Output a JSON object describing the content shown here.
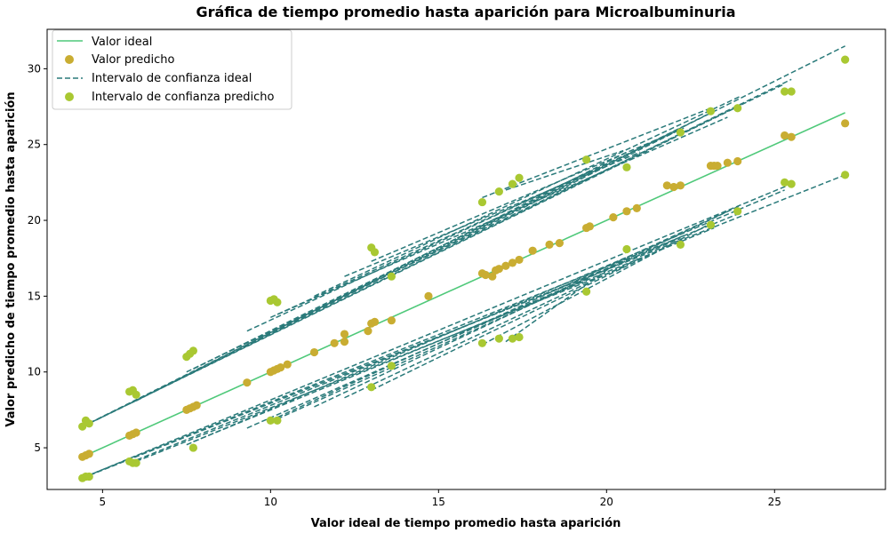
{
  "chart_data": {
    "type": "scatter",
    "title": "Gráfica de tiempo promedio hasta aparición para Microalbuminuria",
    "xlabel": "Valor ideal de tiempo promedio hasta aparición",
    "ylabel": "Valor predicho de tiempo promedio hasta aparición",
    "xlim": [
      3.35,
      28.3
    ],
    "ylim": [
      2.25,
      32.6
    ],
    "xticks": [
      5,
      10,
      15,
      20,
      25
    ],
    "yticks": [
      5,
      10,
      15,
      20,
      25,
      30
    ],
    "grid": false,
    "legend_position": "top-left",
    "legend": [
      "Valor ideal",
      "Valor predicho",
      "Intervalo de confianza ideal",
      "Intervalo de confianza predicho"
    ],
    "colors": {
      "ideal_line": "#4fc97a",
      "predicted": "#c9ad32",
      "ci_ideal": "#2a7a7a",
      "ci_predicted": "#a9c832"
    },
    "ideal_line": {
      "x": [
        4.4,
        27.1
      ],
      "y": [
        4.4,
        27.1
      ]
    },
    "predicted_points": {
      "x": [
        4.4,
        4.5,
        4.6,
        5.8,
        5.9,
        6.0,
        7.5,
        7.6,
        7.7,
        7.8,
        9.3,
        10.0,
        10.1,
        10.2,
        10.3,
        10.5,
        11.3,
        11.9,
        12.2,
        12.2,
        12.9,
        13.0,
        13.1,
        13.6,
        14.7,
        16.3,
        16.4,
        16.6,
        16.7,
        16.8,
        17.0,
        17.2,
        17.4,
        17.8,
        18.3,
        18.6,
        19.4,
        19.5,
        20.2,
        20.6,
        20.9,
        21.8,
        22.0,
        22.2,
        23.1,
        23.2,
        23.3,
        23.6,
        23.9,
        25.3,
        25.5,
        27.1
      ],
      "y": [
        4.4,
        4.5,
        4.6,
        5.8,
        5.9,
        6.0,
        7.5,
        7.6,
        7.7,
        7.8,
        9.3,
        10.0,
        10.1,
        10.2,
        10.3,
        10.5,
        11.3,
        11.9,
        12.5,
        12.0,
        12.7,
        13.2,
        13.3,
        13.4,
        15.0,
        16.5,
        16.4,
        16.3,
        16.7,
        16.8,
        17.0,
        17.2,
        17.4,
        18.0,
        18.4,
        18.5,
        19.5,
        19.6,
        20.2,
        20.6,
        20.8,
        22.3,
        22.2,
        22.3,
        23.6,
        23.6,
        23.6,
        23.8,
        23.9,
        25.6,
        25.5,
        26.4
      ]
    },
    "ci_ideal": {
      "upper": [
        [
          4.4,
          6.4,
          27.1,
          31.5
        ],
        [
          4.5,
          6.5,
          25.5,
          29.3
        ],
        [
          4.6,
          6.6,
          24.0,
          27.6
        ],
        [
          5.8,
          7.9,
          22.2,
          26.0
        ],
        [
          6.0,
          8.1,
          20.6,
          24.5
        ],
        [
          7.5,
          10.0,
          25.3,
          29.0
        ],
        [
          7.7,
          10.2,
          23.2,
          27.2
        ],
        [
          10.0,
          13.6,
          23.6,
          26.8
        ],
        [
          10.2,
          13.8,
          19.5,
          23.2
        ],
        [
          12.2,
          16.3,
          21.0,
          24.5
        ],
        [
          13.0,
          17.3,
          22.0,
          25.8
        ],
        [
          16.3,
          21.5,
          23.1,
          27.4
        ],
        [
          17.0,
          22.0,
          20.5,
          24.6
        ],
        [
          9.3,
          12.7,
          22.3,
          26.1
        ],
        [
          11.3,
          15.0,
          24.0,
          28.2
        ]
      ],
      "lower": [
        [
          4.4,
          3.0,
          27.1,
          23.0
        ],
        [
          4.5,
          3.1,
          25.5,
          22.4
        ],
        [
          4.6,
          3.2,
          24.0,
          20.5
        ],
        [
          5.8,
          4.0,
          22.2,
          18.8
        ],
        [
          6.0,
          4.1,
          20.6,
          17.0
        ],
        [
          7.5,
          5.2,
          25.3,
          22.0
        ],
        [
          7.7,
          5.4,
          23.2,
          19.5
        ],
        [
          10.0,
          6.8,
          23.6,
          20.6
        ],
        [
          10.2,
          6.9,
          19.5,
          16.2
        ],
        [
          12.2,
          8.3,
          21.0,
          17.5
        ],
        [
          13.0,
          8.8,
          22.0,
          18.5
        ],
        [
          16.3,
          11.8,
          23.1,
          19.8
        ],
        [
          17.0,
          12.0,
          20.5,
          17.5
        ],
        [
          9.3,
          6.3,
          22.3,
          19.0
        ],
        [
          11.3,
          7.7,
          24.0,
          21.0
        ]
      ]
    },
    "ci_predicted_points": {
      "x": [
        4.4,
        4.5,
        4.6,
        5.8,
        5.9,
        6.0,
        7.5,
        7.6,
        7.7,
        10.0,
        10.1,
        10.2,
        13.0,
        13.1,
        13.6,
        16.3,
        16.8,
        17.2,
        17.4,
        19.4,
        20.6,
        22.2,
        23.1,
        23.9,
        25.3,
        25.5,
        27.1,
        4.4,
        4.5,
        4.6,
        5.8,
        5.9,
        6.0,
        7.7,
        10.0,
        10.2,
        13.0,
        13.6,
        16.3,
        16.8,
        17.2,
        17.4,
        19.4,
        20.6,
        22.2,
        23.1,
        23.9,
        25.3,
        25.5,
        27.1
      ],
      "y": [
        6.4,
        6.8,
        6.6,
        8.7,
        8.8,
        8.5,
        11.0,
        11.2,
        11.4,
        14.7,
        14.8,
        14.6,
        18.2,
        17.9,
        16.3,
        21.2,
        21.9,
        22.4,
        22.8,
        24.0,
        23.5,
        25.8,
        27.2,
        27.4,
        28.5,
        28.5,
        30.6,
        3.0,
        3.1,
        3.1,
        4.1,
        4.0,
        4.0,
        5.0,
        6.8,
        6.8,
        9.0,
        10.4,
        11.9,
        12.2,
        12.2,
        12.3,
        15.3,
        18.1,
        18.4,
        19.7,
        20.6,
        22.5,
        22.4,
        23.0
      ]
    }
  }
}
